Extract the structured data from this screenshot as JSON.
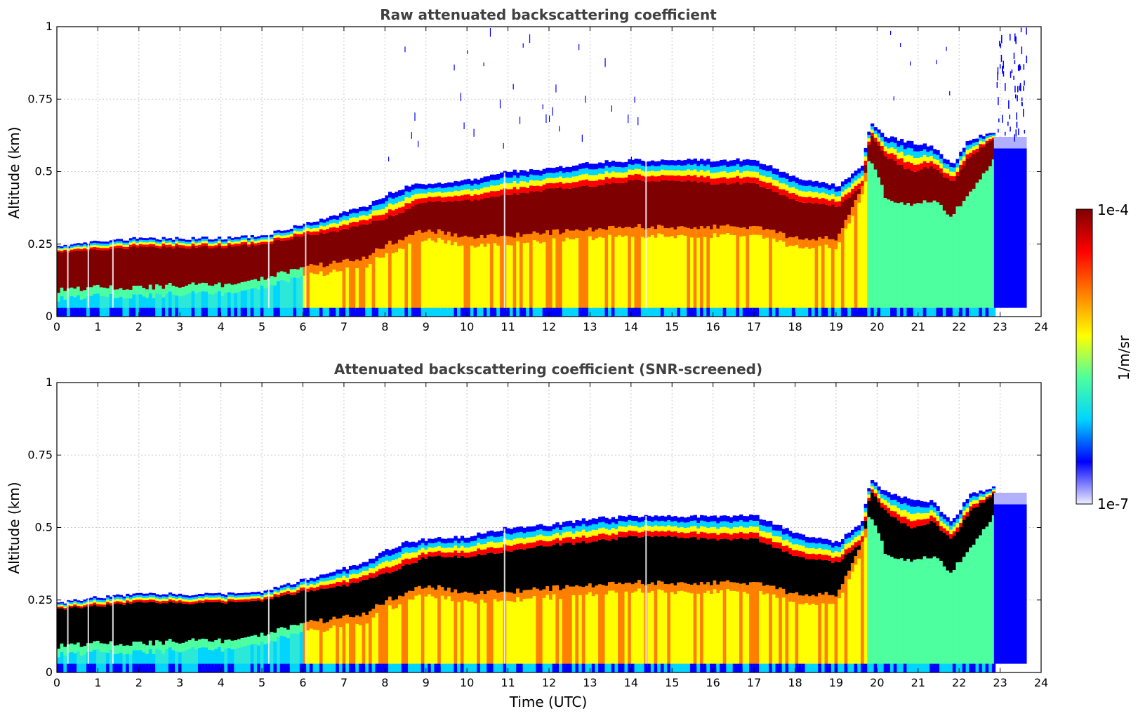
{
  "chart_data": [
    {
      "type": "heatmap",
      "title": "Raw attenuated backscattering coefficient",
      "xlabel": "",
      "ylabel": "Altitude (km)",
      "xlim": [
        0,
        24
      ],
      "ylim": [
        0,
        1
      ],
      "xticks": [
        "0",
        "1",
        "2",
        "3",
        "4",
        "5",
        "6",
        "7",
        "8",
        "9",
        "10",
        "11",
        "12",
        "13",
        "14",
        "15",
        "16",
        "17",
        "18",
        "19",
        "20",
        "21",
        "22",
        "23",
        "24"
      ],
      "yticks": [
        "0",
        "0.25",
        "0.5",
        "0.75",
        "1"
      ],
      "grid": true,
      "screened": false,
      "layer_top_km": [
        [
          0,
          0.24
        ],
        [
          1,
          0.26
        ],
        [
          2,
          0.27
        ],
        [
          3,
          0.27
        ],
        [
          4,
          0.27
        ],
        [
          5,
          0.28
        ],
        [
          6,
          0.32
        ],
        [
          7,
          0.36
        ],
        [
          7.5,
          0.38
        ],
        [
          8,
          0.42
        ],
        [
          8.5,
          0.45
        ],
        [
          9,
          0.46
        ],
        [
          10,
          0.47
        ],
        [
          11,
          0.5
        ],
        [
          12,
          0.51
        ],
        [
          13,
          0.53
        ],
        [
          14,
          0.54
        ],
        [
          15,
          0.54
        ],
        [
          16,
          0.54
        ],
        [
          17,
          0.54
        ],
        [
          18,
          0.48
        ],
        [
          19,
          0.45
        ],
        [
          19.6,
          0.52
        ],
        [
          19.8,
          0.67
        ],
        [
          20.2,
          0.62
        ],
        [
          20.8,
          0.6
        ],
        [
          21.3,
          0.59
        ],
        [
          21.8,
          0.52
        ],
        [
          22.2,
          0.61
        ],
        [
          22.85,
          0.64
        ]
      ],
      "core_top_km": [
        [
          0,
          0.22
        ],
        [
          1,
          0.23
        ],
        [
          2,
          0.24
        ],
        [
          3,
          0.24
        ],
        [
          4,
          0.24
        ],
        [
          5,
          0.25
        ],
        [
          6,
          0.28
        ],
        [
          7,
          0.3
        ],
        [
          8,
          0.34
        ],
        [
          9,
          0.4
        ],
        [
          10,
          0.4
        ],
        [
          11,
          0.42
        ],
        [
          12,
          0.44
        ],
        [
          13,
          0.45
        ],
        [
          14,
          0.47
        ],
        [
          15,
          0.47
        ],
        [
          16,
          0.46
        ],
        [
          17,
          0.46
        ],
        [
          18,
          0.4
        ],
        [
          19,
          0.38
        ],
        [
          19.6,
          0.45
        ],
        [
          19.8,
          0.63
        ],
        [
          20.2,
          0.55
        ],
        [
          20.8,
          0.5
        ],
        [
          21.3,
          0.52
        ],
        [
          21.8,
          0.46
        ],
        [
          22.2,
          0.55
        ],
        [
          22.85,
          0.62
        ]
      ],
      "core_bottom_km": [
        [
          0,
          0.09
        ],
        [
          1,
          0.1
        ],
        [
          2,
          0.1
        ],
        [
          3,
          0.11
        ],
        [
          4,
          0.11
        ],
        [
          5,
          0.13
        ],
        [
          6,
          0.17
        ],
        [
          7,
          0.19
        ],
        [
          7.5,
          0.2
        ],
        [
          8,
          0.25
        ],
        [
          9,
          0.3
        ],
        [
          10,
          0.27
        ],
        [
          11,
          0.28
        ],
        [
          12,
          0.29
        ],
        [
          13,
          0.3
        ],
        [
          14,
          0.31
        ],
        [
          15,
          0.31
        ],
        [
          16,
          0.31
        ],
        [
          17,
          0.31
        ],
        [
          18,
          0.27
        ],
        [
          19,
          0.27
        ],
        [
          19.6,
          0.45
        ],
        [
          19.8,
          0.55
        ],
        [
          20.2,
          0.4
        ],
        [
          20.8,
          0.38
        ],
        [
          21.3,
          0.4
        ],
        [
          21.8,
          0.35
        ],
        [
          22.2,
          0.42
        ],
        [
          22.85,
          0.55
        ]
      ]
    },
    {
      "type": "heatmap",
      "title": "Attenuated backscattering coefficient (SNR-screened)",
      "xlabel": "Time (UTC)",
      "ylabel": "Altitude (km)",
      "xlim": [
        0,
        24
      ],
      "ylim": [
        0,
        1
      ],
      "xticks": [
        "0",
        "1",
        "2",
        "3",
        "4",
        "5",
        "6",
        "7",
        "8",
        "9",
        "10",
        "11",
        "12",
        "13",
        "14",
        "15",
        "16",
        "17",
        "18",
        "19",
        "20",
        "21",
        "22",
        "23",
        "24"
      ],
      "yticks": [
        "0",
        "0.25",
        "0.5",
        "0.75",
        "1"
      ],
      "grid": true,
      "screened": true,
      "layer_top_km": [
        [
          0,
          0.24
        ],
        [
          1,
          0.26
        ],
        [
          2,
          0.27
        ],
        [
          3,
          0.27
        ],
        [
          4,
          0.27
        ],
        [
          5,
          0.28
        ],
        [
          6,
          0.32
        ],
        [
          7,
          0.36
        ],
        [
          7.5,
          0.38
        ],
        [
          8,
          0.42
        ],
        [
          8.5,
          0.45
        ],
        [
          9,
          0.46
        ],
        [
          10,
          0.47
        ],
        [
          11,
          0.5
        ],
        [
          12,
          0.51
        ],
        [
          13,
          0.53
        ],
        [
          14,
          0.54
        ],
        [
          15,
          0.54
        ],
        [
          16,
          0.54
        ],
        [
          17,
          0.54
        ],
        [
          18,
          0.48
        ],
        [
          19,
          0.45
        ],
        [
          19.6,
          0.52
        ],
        [
          19.8,
          0.67
        ],
        [
          20.2,
          0.62
        ],
        [
          20.8,
          0.6
        ],
        [
          21.3,
          0.59
        ],
        [
          21.8,
          0.52
        ],
        [
          22.2,
          0.61
        ],
        [
          22.85,
          0.64
        ]
      ],
      "core_top_km": [
        [
          0,
          0.22
        ],
        [
          1,
          0.23
        ],
        [
          2,
          0.24
        ],
        [
          3,
          0.24
        ],
        [
          4,
          0.24
        ],
        [
          5,
          0.25
        ],
        [
          6,
          0.28
        ],
        [
          7,
          0.3
        ],
        [
          8,
          0.34
        ],
        [
          9,
          0.4
        ],
        [
          10,
          0.4
        ],
        [
          11,
          0.42
        ],
        [
          12,
          0.44
        ],
        [
          13,
          0.45
        ],
        [
          14,
          0.47
        ],
        [
          15,
          0.47
        ],
        [
          16,
          0.46
        ],
        [
          17,
          0.46
        ],
        [
          18,
          0.4
        ],
        [
          19,
          0.38
        ],
        [
          19.6,
          0.45
        ],
        [
          19.8,
          0.63
        ],
        [
          20.2,
          0.55
        ],
        [
          20.8,
          0.5
        ],
        [
          21.3,
          0.52
        ],
        [
          21.8,
          0.46
        ],
        [
          22.2,
          0.55
        ],
        [
          22.85,
          0.62
        ]
      ],
      "core_bottom_km": [
        [
          0,
          0.09
        ],
        [
          1,
          0.1
        ],
        [
          2,
          0.1
        ],
        [
          3,
          0.11
        ],
        [
          4,
          0.11
        ],
        [
          5,
          0.13
        ],
        [
          6,
          0.17
        ],
        [
          7,
          0.19
        ],
        [
          7.5,
          0.2
        ],
        [
          8,
          0.25
        ],
        [
          9,
          0.3
        ],
        [
          10,
          0.27
        ],
        [
          11,
          0.28
        ],
        [
          12,
          0.29
        ],
        [
          13,
          0.3
        ],
        [
          14,
          0.31
        ],
        [
          15,
          0.31
        ],
        [
          16,
          0.31
        ],
        [
          17,
          0.31
        ],
        [
          18,
          0.27
        ],
        [
          19,
          0.27
        ],
        [
          19.6,
          0.45
        ],
        [
          19.8,
          0.55
        ],
        [
          20.2,
          0.4
        ],
        [
          20.8,
          0.38
        ],
        [
          21.3,
          0.4
        ],
        [
          21.8,
          0.35
        ],
        [
          22.2,
          0.42
        ],
        [
          22.85,
          0.55
        ]
      ]
    }
  ],
  "colorbar": {
    "label": "1/m/sr",
    "max_label": "1e-4",
    "min_label": "1e-7",
    "colormap": [
      "#eeeeff",
      "#0000ff",
      "#00d4ff",
      "#4dff9e",
      "#ffff00",
      "#ff7f00",
      "#ff0000",
      "#7f0000"
    ],
    "screened_core_color": "#000000"
  }
}
